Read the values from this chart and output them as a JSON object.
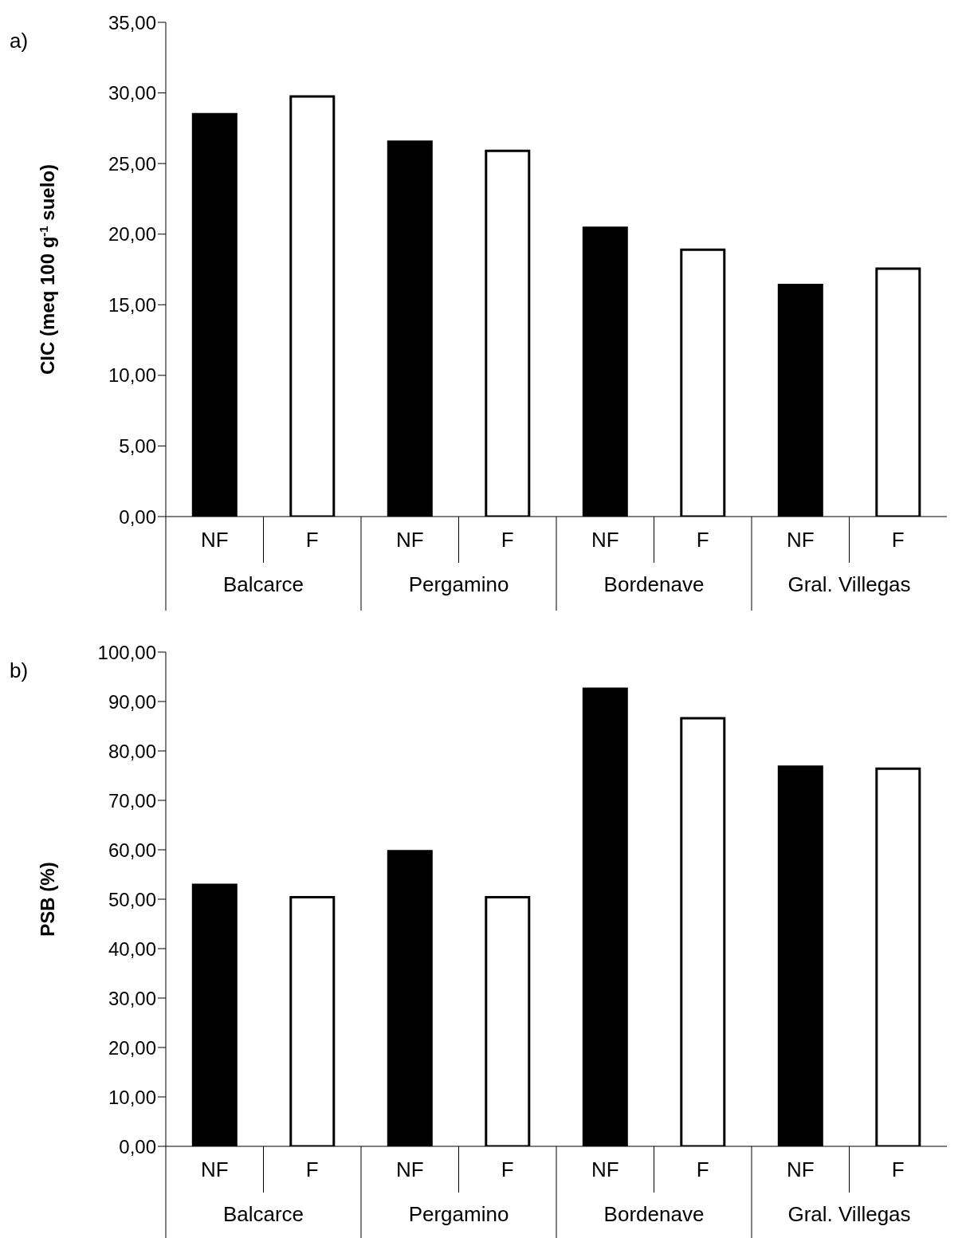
{
  "chart_data": [
    {
      "type": "bar",
      "title": "a)",
      "ylabel": "CIC (meq 100 g$^{-1}$ suelo)",
      "categories": [
        "NF",
        "F",
        "NF",
        "F",
        "NF",
        "F",
        "NF",
        "F"
      ],
      "values": [
        28.5,
        29.75,
        26.55,
        25.9,
        20.45,
        18.9,
        16.4,
        17.55
      ],
      "colors": [
        "#000000",
        "#ffffff",
        "#000000",
        "#ffffff",
        "#000000",
        "#ffffff",
        "#000000",
        "#ffffff"
      ],
      "annotations": [
        "Balcarce",
        "Pergamino",
        "Bordenave",
        "Gral. Villegas"
      ],
      "ylim": [
        0,
        35
      ],
      "yticks": [
        {
          "value": 0,
          "label": "0,00"
        },
        {
          "value": 5,
          "label": "5,00"
        },
        {
          "value": 10,
          "label": "10,00"
        },
        {
          "value": 15,
          "label": "15,00"
        },
        {
          "value": 20,
          "label": "20,00"
        },
        {
          "value": 25,
          "label": "25,00"
        },
        {
          "value": 30,
          "label": "30,00"
        },
        {
          "value": 35,
          "label": "35,00"
        }
      ],
      "grid": false,
      "legend": false
    },
    {
      "type": "bar",
      "title": "b)",
      "ylabel": "PSB (%)",
      "categories": [
        "NF",
        "F",
        "NF",
        "F",
        "NF",
        "F",
        "NF",
        "F"
      ],
      "values": [
        52.9,
        50.4,
        59.7,
        50.4,
        92.6,
        86.6,
        76.8,
        76.4
      ],
      "colors": [
        "#000000",
        "#ffffff",
        "#000000",
        "#ffffff",
        "#000000",
        "#ffffff",
        "#000000",
        "#ffffff"
      ],
      "annotations": [
        "Balcarce",
        "Pergamino",
        "Bordenave",
        "Gral. Villegas"
      ],
      "ylim": [
        0,
        100
      ],
      "yticks": [
        {
          "value": 0,
          "label": "0,00"
        },
        {
          "value": 10,
          "label": "10,00"
        },
        {
          "value": 20,
          "label": "20,00"
        },
        {
          "value": 30,
          "label": "30,00"
        },
        {
          "value": 40,
          "label": "40,00"
        },
        {
          "value": 50,
          "label": "50,00"
        },
        {
          "value": 60,
          "label": "60,00"
        },
        {
          "value": 70,
          "label": "70,00"
        },
        {
          "value": 80,
          "label": "80,00"
        },
        {
          "value": 90,
          "label": "90,00"
        },
        {
          "value": 100,
          "label": "100,00"
        }
      ],
      "grid": false,
      "legend": false
    }
  ]
}
